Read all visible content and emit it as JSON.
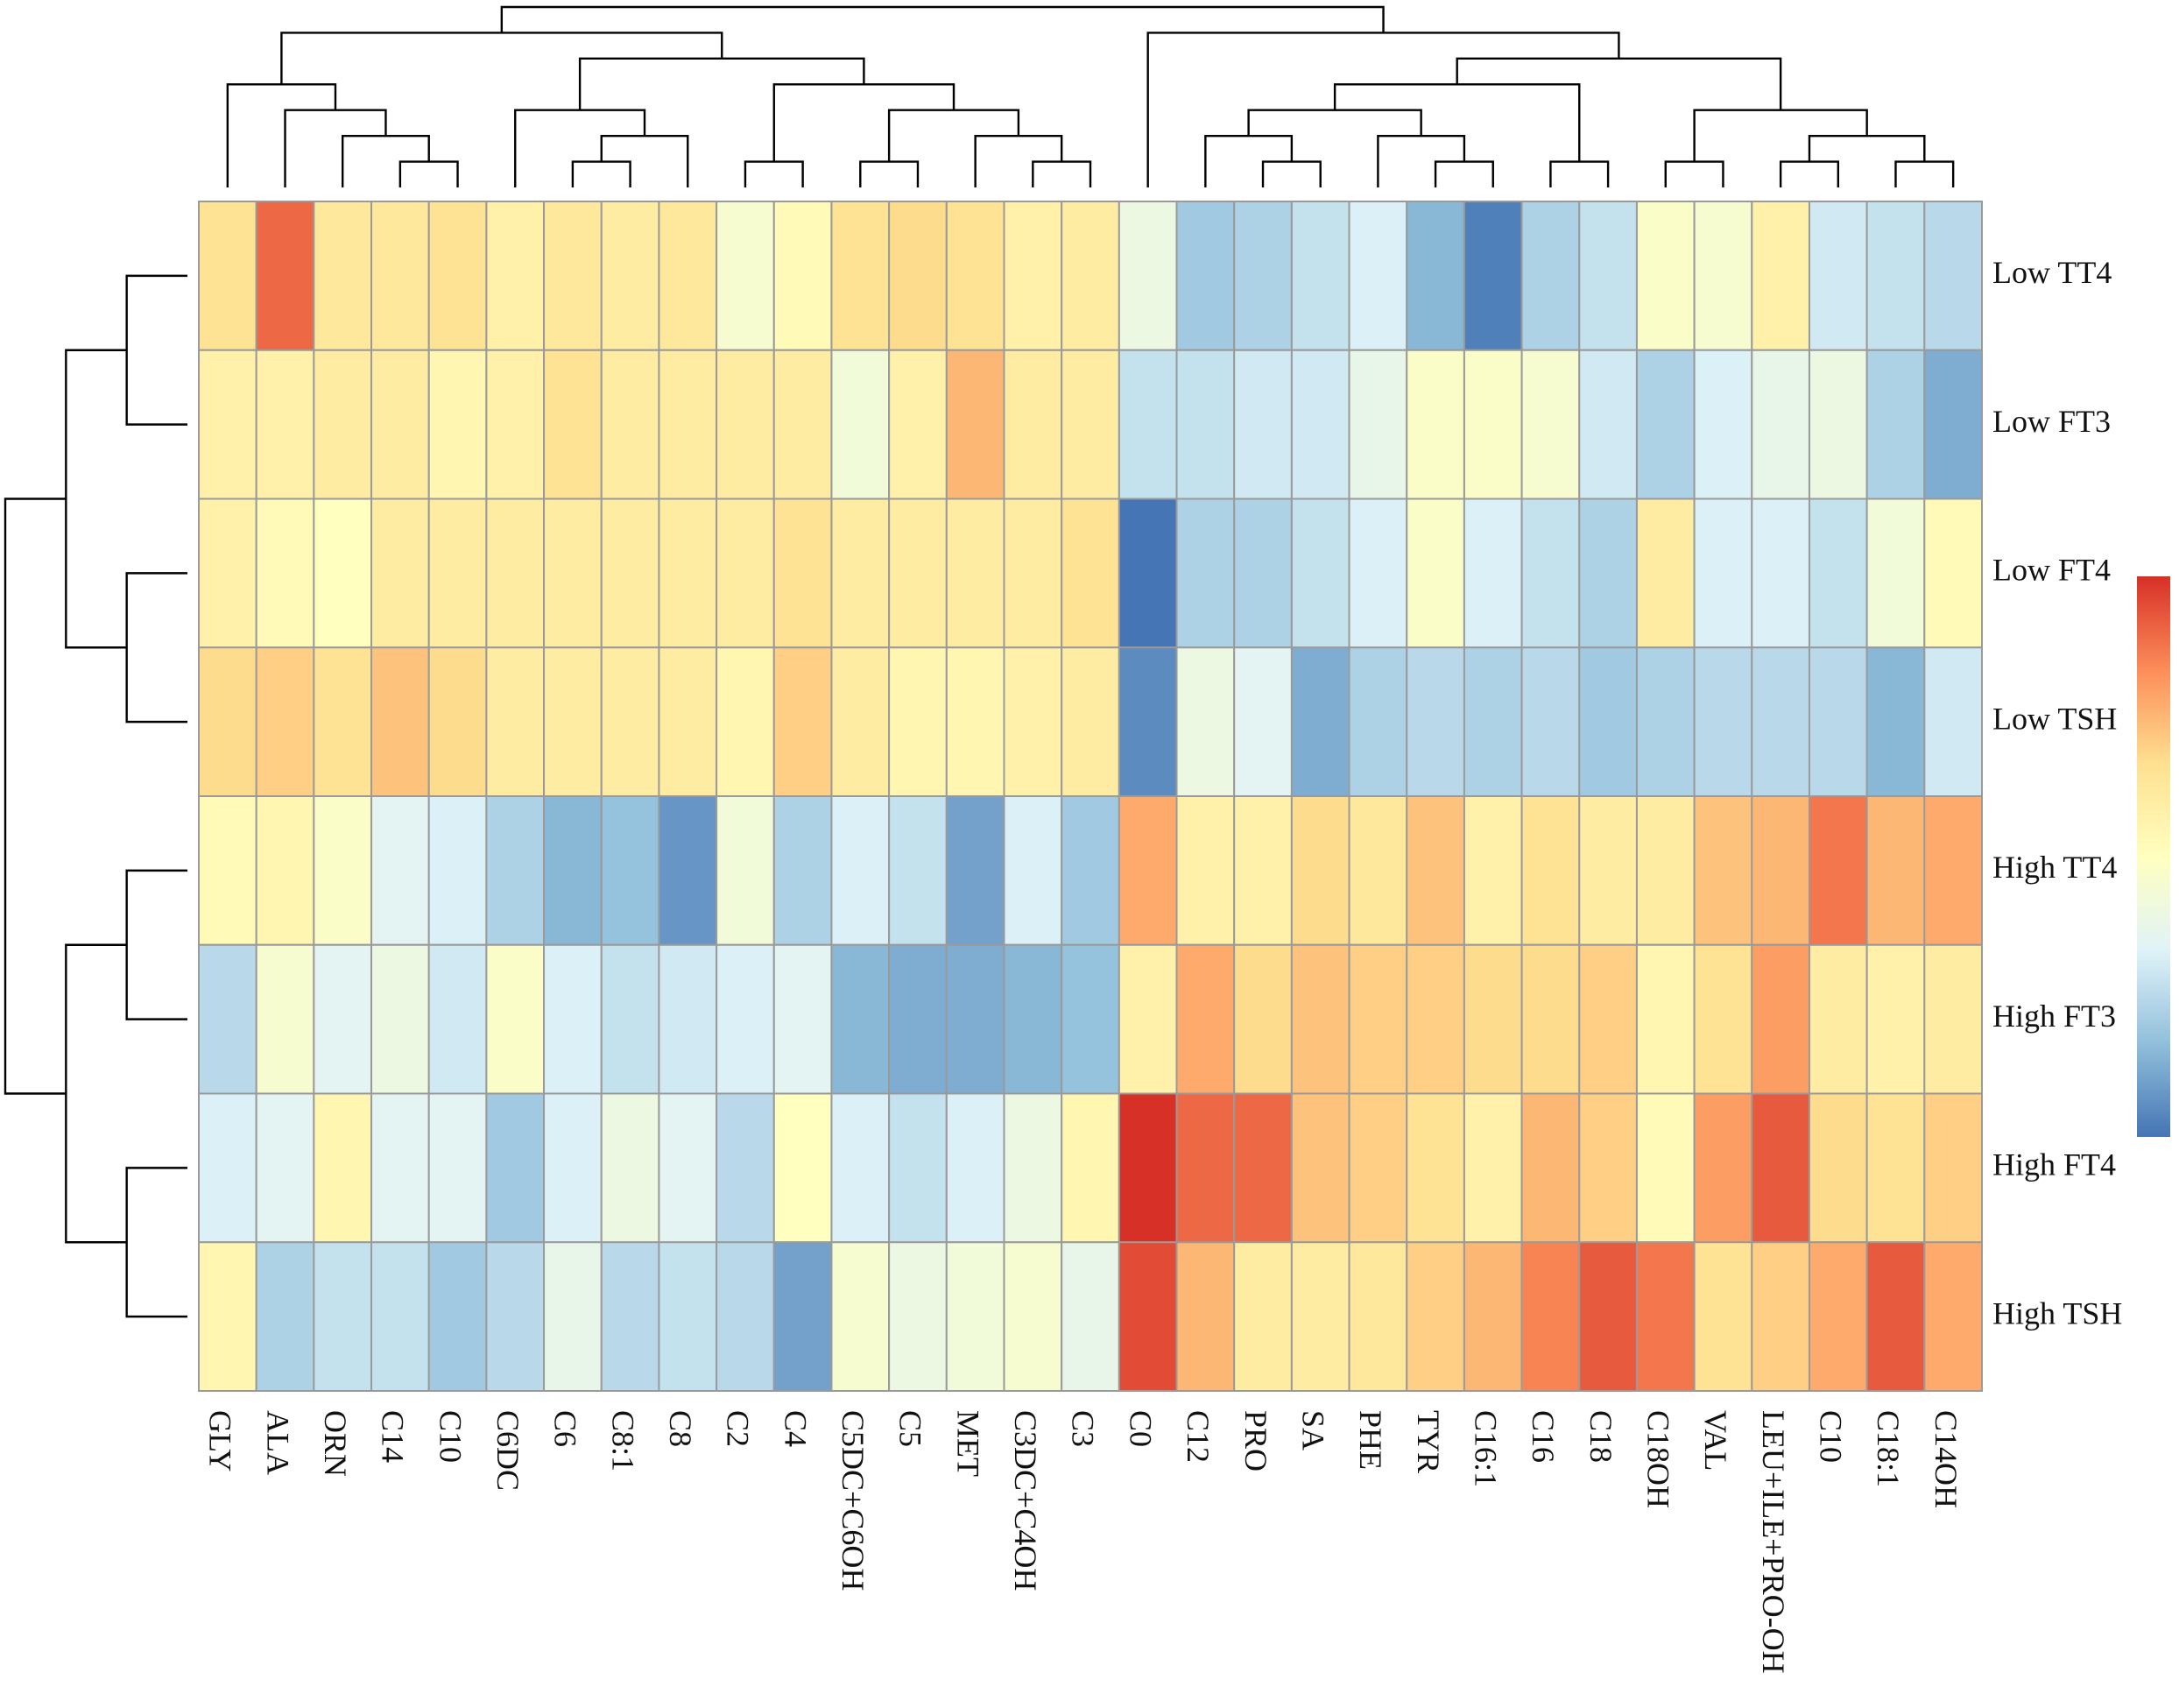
{
  "chart_data": {
    "type": "heatmap",
    "title": "",
    "columns": [
      "GLY",
      "ALA",
      "ORN",
      "C14",
      "C10",
      "C6DC",
      "C6",
      "C8:1",
      "C8",
      "C2",
      "C4",
      "C5DC+C6OH",
      "C5",
      "MET",
      "C3DC+C4OH",
      "C3",
      "C0",
      "C12",
      "PRO",
      "SA",
      "PHE",
      "TYR",
      "C16:1",
      "C16",
      "C18",
      "C18OH",
      "VAL",
      "LEU+ILE+PRO-OH",
      "C10",
      "C18:1",
      "C14OH"
    ],
    "rows": [
      "Low TT4",
      "Low FT3",
      "Low FT4",
      "Low TSH",
      "High TT4",
      "High FT3",
      "High FT4",
      "High TSH"
    ],
    "values": [
      [
        0.3,
        0.8,
        0.25,
        0.25,
        0.3,
        0.15,
        0.25,
        0.2,
        0.25,
        -0.1,
        0.05,
        0.3,
        0.35,
        0.3,
        0.15,
        0.2,
        -0.2,
        -0.6,
        -0.55,
        -0.45,
        -0.35,
        -0.7,
        -0.95,
        -0.55,
        -0.45,
        -0.05,
        -0.1,
        0.15,
        -0.4,
        -0.45,
        -0.5
      ],
      [
        0.15,
        0.15,
        0.2,
        0.2,
        0.1,
        0.15,
        0.3,
        0.2,
        0.2,
        0.2,
        0.2,
        -0.15,
        0.15,
        0.5,
        0.2,
        0.2,
        -0.45,
        -0.45,
        -0.4,
        -0.4,
        -0.25,
        -0.05,
        -0.05,
        -0.1,
        -0.4,
        -0.55,
        -0.35,
        -0.25,
        -0.2,
        -0.55,
        -0.75
      ],
      [
        0.15,
        0.05,
        0.0,
        0.2,
        0.2,
        0.2,
        0.2,
        0.2,
        0.2,
        0.2,
        0.3,
        0.2,
        0.2,
        0.2,
        0.2,
        0.3,
        -1.0,
        -0.55,
        -0.55,
        -0.45,
        -0.35,
        -0.05,
        -0.35,
        -0.45,
        -0.55,
        0.2,
        -0.35,
        -0.35,
        -0.45,
        -0.15,
        0.05
      ],
      [
        0.35,
        0.4,
        0.3,
        0.45,
        0.35,
        0.2,
        0.2,
        0.2,
        0.2,
        0.1,
        0.4,
        0.2,
        0.1,
        0.1,
        0.15,
        0.2,
        -0.9,
        -0.2,
        -0.3,
        -0.75,
        -0.55,
        -0.5,
        -0.55,
        -0.5,
        -0.6,
        -0.55,
        -0.5,
        -0.5,
        -0.5,
        -0.7,
        -0.4
      ],
      [
        0.05,
        0.1,
        -0.05,
        -0.3,
        -0.35,
        -0.55,
        -0.7,
        -0.65,
        -0.85,
        -0.15,
        -0.55,
        -0.35,
        -0.45,
        -0.8,
        -0.35,
        -0.6,
        0.55,
        0.15,
        0.15,
        0.35,
        0.25,
        0.45,
        0.15,
        0.3,
        0.2,
        0.2,
        0.45,
        0.5,
        0.75,
        0.5,
        0.55
      ],
      [
        -0.5,
        -0.1,
        -0.3,
        -0.2,
        -0.4,
        -0.05,
        -0.35,
        -0.45,
        -0.4,
        -0.35,
        -0.3,
        -0.7,
        -0.75,
        -0.75,
        -0.7,
        -0.65,
        0.15,
        0.55,
        0.35,
        0.45,
        0.4,
        0.4,
        0.35,
        0.35,
        0.4,
        0.1,
        0.3,
        0.6,
        0.2,
        0.15,
        0.2
      ],
      [
        -0.35,
        -0.3,
        0.1,
        -0.3,
        -0.3,
        -0.6,
        -0.35,
        -0.2,
        -0.3,
        -0.5,
        0.0,
        -0.35,
        -0.45,
        -0.35,
        -0.2,
        0.1,
        1.0,
        0.8,
        0.8,
        0.45,
        0.4,
        0.3,
        0.15,
        0.5,
        0.4,
        0.05,
        0.6,
        0.85,
        0.35,
        0.3,
        0.4
      ],
      [
        0.1,
        -0.55,
        -0.45,
        -0.45,
        -0.6,
        -0.5,
        -0.25,
        -0.5,
        -0.45,
        -0.5,
        -0.8,
        -0.1,
        -0.2,
        -0.15,
        -0.1,
        -0.25,
        0.9,
        0.5,
        0.2,
        0.2,
        0.25,
        0.4,
        0.5,
        0.7,
        0.85,
        0.75,
        0.3,
        0.4,
        0.55,
        0.85,
        0.55
      ]
    ],
    "color_scale": [
      "#4575b4",
      "#91bfdb",
      "#e0f3f8",
      "#ffffbf",
      "#fee090",
      "#fc8d59",
      "#d73027"
    ],
    "value_range": [
      -1,
      1
    ],
    "legend": "right"
  }
}
